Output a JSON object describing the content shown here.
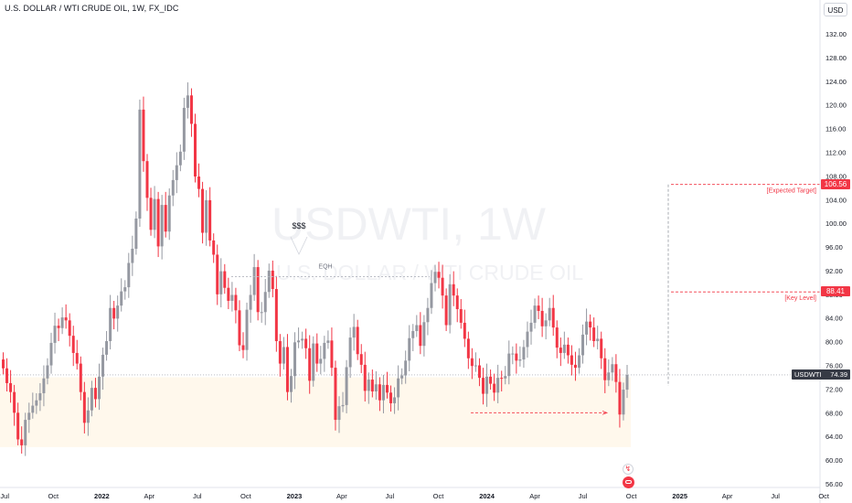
{
  "header": {
    "symbol_title": "U.S. DOLLAR / WTI CRUDE OIL, 1W, FX_IDC",
    "currency": "USD"
  },
  "watermark": {
    "symbol": "USDWTI, 1W",
    "description": "U.S. DOLLAR / WTI CRUDE OIL"
  },
  "colors": {
    "up": "#9598a1",
    "down": "#f23645",
    "zone": "#fff8ec",
    "text": "#131722"
  },
  "badges": {
    "expected_target_price": "106.56",
    "key_level_price": "88.41",
    "last_symbol": "USDWTI",
    "last_price": "74.39"
  },
  "annotations": {
    "eqh": "EQH",
    "liquidity": "$$$",
    "expected_target": "[Expected Target]",
    "key_level": "[Key Level]"
  },
  "icons": [
    "flash-icon",
    "events-icon"
  ],
  "chart_data": {
    "type": "candlestick",
    "title": "U.S. DOLLAR / WTI CRUDE OIL, 1W, FX_IDC",
    "xlabel": "",
    "ylabel": "",
    "ylim": [
      55,
      135
    ],
    "y_ticks": [
      56,
      60,
      64,
      68,
      72,
      76,
      80,
      84,
      88,
      92,
      96,
      100,
      104,
      108,
      112,
      116,
      120,
      124,
      128,
      132
    ],
    "x_ticks": [
      {
        "label": "Jul",
        "date": "2021-07-01"
      },
      {
        "label": "Oct",
        "date": "2021-10-01"
      },
      {
        "label": "2022",
        "date": "2022-01-01"
      },
      {
        "label": "Apr",
        "date": "2022-04-01"
      },
      {
        "label": "Jul",
        "date": "2022-07-01"
      },
      {
        "label": "Oct",
        "date": "2022-10-01"
      },
      {
        "label": "2023",
        "date": "2023-01-01"
      },
      {
        "label": "Apr",
        "date": "2023-04-01"
      },
      {
        "label": "Jul",
        "date": "2023-07-01"
      },
      {
        "label": "Oct",
        "date": "2023-10-01"
      },
      {
        "label": "2024",
        "date": "2024-01-01"
      },
      {
        "label": "Apr",
        "date": "2024-04-01"
      },
      {
        "label": "Jul",
        "date": "2024-07-01"
      },
      {
        "label": "Oct",
        "date": "2024-10-01"
      },
      {
        "label": "2025",
        "date": "2025-01-01"
      },
      {
        "label": "Apr",
        "date": "2025-04-01"
      },
      {
        "label": "Jul",
        "date": "2025-07-01"
      },
      {
        "label": "Oct",
        "date": "2025-10-01"
      }
    ],
    "x_range": [
      "2021-06-28",
      "2025-11-10"
    ],
    "series": [
      {
        "close": [
          75.5,
          73.0,
          71.5,
          68.0,
          63.5,
          62.5,
          66.8,
          68.0,
          69.2,
          70.1,
          71.3,
          73.8,
          76.0,
          79.8,
          82.7,
          82.3,
          84.1,
          83.6,
          81.0,
          78.1,
          76.3,
          71.5,
          66.3,
          68.4,
          72.2,
          70.3,
          74.1,
          77.8,
          80.1,
          85.7,
          83.9,
          86.1,
          88.5,
          89.2,
          93.3,
          95.7,
          100.8,
          119.2,
          110.5,
          104.3,
          98.9,
          104.1,
          96.1,
          103.1,
          98.6,
          104.7,
          107.3,
          109.8,
          112.1,
          119.5,
          121.6,
          116.8,
          107.9,
          105.8,
          98.4,
          103.9,
          97.1,
          94.7,
          88.0,
          91.9,
          89.1,
          86.9,
          87.9,
          85.3,
          79.4,
          78.6,
          85.4,
          87.9,
          92.6,
          85.0,
          85.0,
          88.4,
          92.0,
          88.9,
          80.1,
          76.3,
          79.1,
          71.5,
          74.2,
          79.9,
          80.2,
          80.5,
          78.9,
          73.4,
          79.7,
          76.3,
          77.1,
          79.8,
          80.2,
          75.6,
          66.8,
          69.1,
          69.3,
          75.7,
          80.7,
          82.5,
          77.9,
          76.1,
          71.7,
          73.6,
          71.6,
          72.8,
          70.1,
          72.7,
          71.4,
          69.6,
          70.6,
          73.8,
          74.3,
          76.8,
          80.6,
          81.8,
          82.8,
          79.3,
          83.3,
          85.7,
          89.9,
          91.8,
          90.8,
          87.8,
          82.8,
          89.7,
          87.8,
          85.5,
          83.2,
          80.5,
          77.2,
          75.9,
          76.0,
          73.9,
          71.2,
          74.1,
          72.9,
          71.4,
          73.9,
          73.8,
          74.2,
          78.0,
          78.0,
          76.8,
          77.0,
          79.1,
          81.7,
          83.2,
          86.1,
          85.2,
          82.6,
          83.6,
          85.7,
          82.4,
          79.0,
          78.1,
          79.5,
          77.7,
          76.1,
          75.6,
          77.7,
          81.2,
          83.4,
          82.4,
          80.1,
          80.5,
          77.2,
          73.5,
          74.8,
          76.2,
          73.2,
          67.7,
          71.9,
          74.39
        ]
      }
    ],
    "zones": [
      {
        "name": "demand zone",
        "from": 62.2,
        "to": 74.0
      }
    ],
    "levels": [
      {
        "label": "[Expected Target]",
        "value": 106.56
      },
      {
        "label": "[Key Level]",
        "value": 88.41
      },
      {
        "label": "EQH",
        "value": 91.0
      },
      {
        "label": "",
        "value": 68.0
      }
    ],
    "last_price": 74.39,
    "grid": false
  }
}
